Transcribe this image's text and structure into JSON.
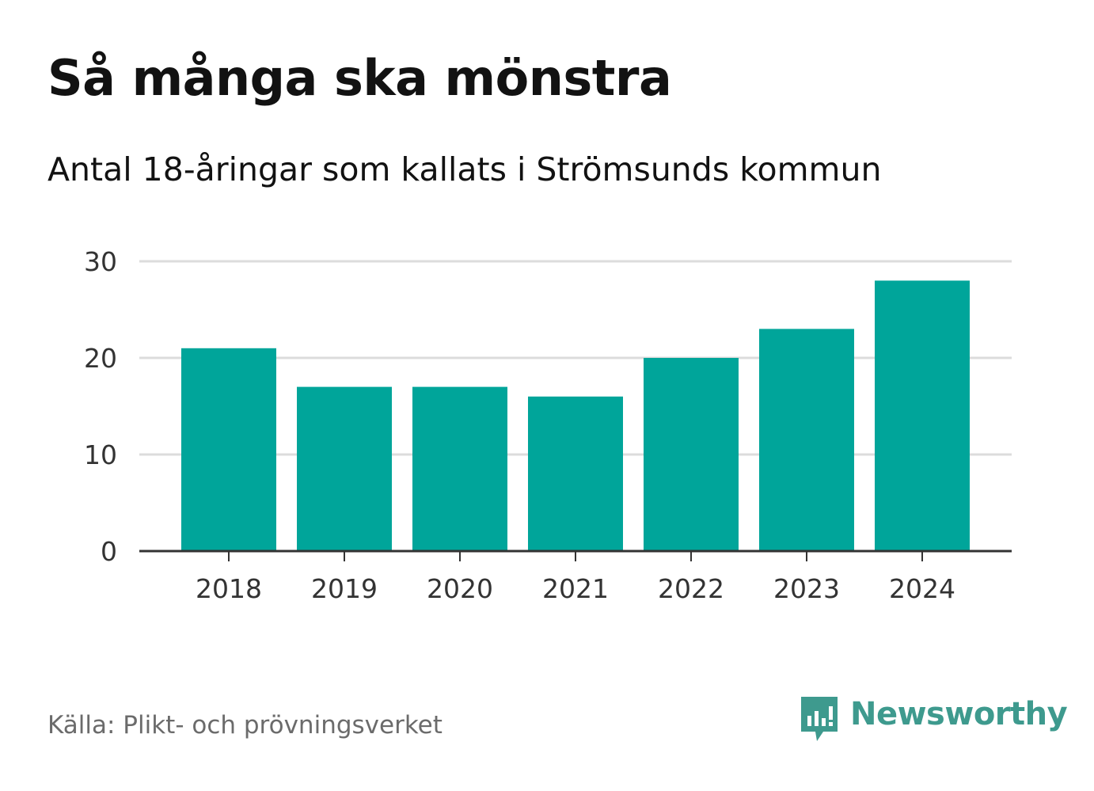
{
  "header": {
    "title": "Så många ska mönstra",
    "subtitle": "Antal 18-åringar som kallats i Strömsunds kommun"
  },
  "footer": {
    "source": "Källa: Plikt- och prövningsverket",
    "brand": "Newsworthy",
    "brand_icon": "newsworthy-logo-icon"
  },
  "colors": {
    "bar": "#00a59a",
    "grid": "#dcdcdc",
    "axis": "#333333",
    "brand": "#3e9a8e"
  },
  "chart_data": {
    "type": "bar",
    "title": "Så många ska mönstra",
    "subtitle": "Antal 18-åringar som kallats i Strömsunds kommun",
    "categories": [
      "2018",
      "2019",
      "2020",
      "2021",
      "2022",
      "2023",
      "2024"
    ],
    "values": [
      21,
      17,
      17,
      16,
      20,
      23,
      28
    ],
    "xlabel": "",
    "ylabel": "",
    "ylim": [
      0,
      30
    ],
    "yticks": [
      0,
      10,
      20,
      30
    ],
    "grid": true
  }
}
